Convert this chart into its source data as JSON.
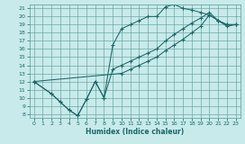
{
  "xlabel": "Humidex (Indice chaleur)",
  "bg_color": "#c8eaea",
  "grid_color": "#5a9898",
  "line_color": "#1a6868",
  "xlim": [
    -0.5,
    23.5
  ],
  "ylim": [
    7.5,
    21.5
  ],
  "xticks": [
    0,
    1,
    2,
    3,
    4,
    5,
    6,
    7,
    8,
    9,
    10,
    11,
    12,
    13,
    14,
    15,
    16,
    17,
    18,
    19,
    20,
    21,
    22,
    23
  ],
  "yticks": [
    8,
    9,
    10,
    11,
    12,
    13,
    14,
    15,
    16,
    17,
    18,
    19,
    20,
    21
  ],
  "line_upper_x": [
    0,
    2,
    3,
    4,
    5,
    6,
    7,
    8,
    9,
    10,
    11,
    12,
    13,
    14,
    15,
    16,
    17,
    18,
    19,
    20,
    21,
    22,
    23
  ],
  "line_upper_y": [
    12,
    10.5,
    9.5,
    8.5,
    7.8,
    9.8,
    12.0,
    10.0,
    16.5,
    18.5,
    19.0,
    19.5,
    20.0,
    20.0,
    21.2,
    21.5,
    21.0,
    20.8,
    20.5,
    20.2,
    19.5,
    19.0,
    19.0
  ],
  "line_mid1_x": [
    0,
    2,
    3,
    4,
    5,
    6,
    7,
    8,
    9,
    10,
    11,
    12,
    13,
    14,
    15,
    16,
    17,
    18,
    19,
    20,
    21,
    22,
    23
  ],
  "line_mid1_y": [
    12,
    10.5,
    9.5,
    8.5,
    7.8,
    9.8,
    12.0,
    10.0,
    13.5,
    14.0,
    14.5,
    15.0,
    15.5,
    16.0,
    17.0,
    17.8,
    18.5,
    19.2,
    19.8,
    20.5,
    19.5,
    19.0,
    19.0
  ],
  "line_diag_x": [
    0,
    10,
    11,
    12,
    13,
    14,
    15,
    16,
    17,
    18,
    19,
    20,
    21,
    22,
    23
  ],
  "line_diag_y": [
    12,
    13.0,
    13.5,
    14.0,
    14.5,
    15.0,
    15.8,
    16.5,
    17.2,
    18.0,
    18.8,
    20.2,
    19.5,
    18.8,
    19.0
  ]
}
